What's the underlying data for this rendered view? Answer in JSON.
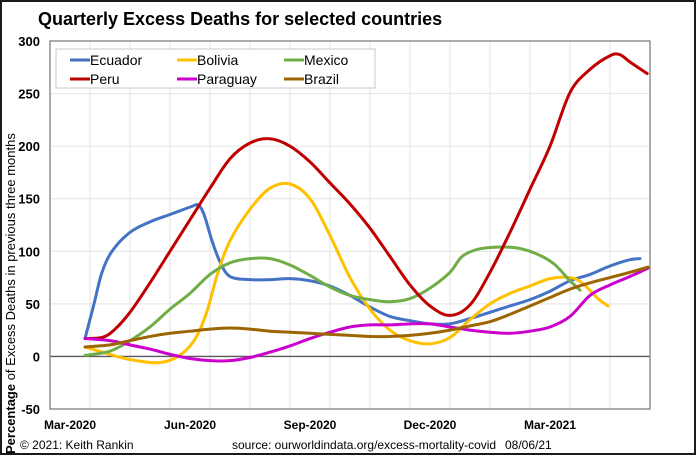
{
  "chart_data": {
    "type": "line",
    "title": "Quarterly Excess Deaths for selected countries",
    "xlabel": "",
    "ylabel": "Percentage of Excess Deaths in previous three months",
    "ylabel_bold_part": "Percentage",
    "ylabel_rest": " of Excess Deaths in previous three months",
    "x_unit": "months since start of Mar-2020",
    "xlim": [
      0,
      15
    ],
    "ylim": [
      -50,
      300
    ],
    "yticks": [
      -50,
      0,
      50,
      100,
      150,
      200,
      250,
      300
    ],
    "xticks": [
      {
        "label": "Mar-2020",
        "x": 0.5
      },
      {
        "label": "Jun-2020",
        "x": 3.5
      },
      {
        "label": "Sep-2020",
        "x": 6.5
      },
      {
        "label": "Dec-2020",
        "x": 9.5
      },
      {
        "label": "Mar-2021",
        "x": 12.5
      }
    ],
    "grid": true,
    "legend_position": "top-left",
    "series": [
      {
        "name": "Ecuador",
        "color": "#4472C4",
        "x": [
          0.875,
          1.1,
          1.3,
          1.55,
          2.0,
          2.5,
          3.0,
          3.5,
          3.7,
          3.85,
          4.05,
          4.25,
          4.5,
          5.0,
          5.5,
          6.0,
          6.5,
          7.0,
          7.5,
          8.0,
          8.5,
          9.0,
          9.5,
          10.0,
          10.5,
          11.0,
          11.5,
          12.0,
          12.5,
          13.0,
          13.5,
          14.0,
          14.5,
          14.75
        ],
        "values": [
          17,
          50,
          80,
          100,
          118,
          128,
          135,
          142,
          144,
          135,
          110,
          90,
          76,
          73,
          73,
          74,
          72,
          67,
          58,
          47,
          38,
          34,
          31,
          31,
          36,
          42,
          48,
          54,
          62,
          72,
          78,
          86,
          92,
          93
        ]
      },
      {
        "name": "Bolivia",
        "color": "#FFC000",
        "x": [
          0.875,
          1.5,
          2.0,
          2.7,
          3.2,
          3.6,
          3.9,
          4.2,
          4.5,
          5.0,
          5.5,
          6.0,
          6.5,
          7.0,
          7.5,
          8.0,
          8.5,
          9.0,
          9.5,
          10.0,
          10.5,
          11.0,
          11.5,
          12.0,
          12.5,
          13.0,
          13.3,
          13.7,
          13.95
        ],
        "values": [
          9,
          2,
          -3,
          -6,
          0,
          15,
          40,
          80,
          110,
          140,
          160,
          164,
          150,
          115,
          75,
          45,
          25,
          15,
          12,
          18,
          35,
          50,
          60,
          67,
          74,
          75,
          70,
          55,
          48
        ]
      },
      {
        "name": "Mexico",
        "color": "#70AD47",
        "x": [
          0.875,
          1.5,
          2.0,
          2.5,
          3.0,
          3.5,
          4.0,
          4.5,
          5.0,
          5.5,
          6.0,
          6.5,
          7.0,
          7.5,
          8.0,
          8.5,
          9.0,
          9.5,
          10.0,
          10.3,
          10.7,
          11.2,
          11.7,
          12.2,
          12.6,
          13.0,
          13.25
        ],
        "values": [
          1,
          5,
          15,
          28,
          45,
          60,
          78,
          89,
          93,
          93,
          87,
          77,
          66,
          58,
          54,
          52,
          55,
          65,
          80,
          95,
          102,
          104,
          103,
          97,
          88,
          72,
          63
        ]
      },
      {
        "name": "Peru",
        "color": "#C00000",
        "x": [
          0.875,
          1.3,
          1.6,
          2.0,
          2.5,
          3.0,
          3.5,
          4.0,
          4.5,
          5.0,
          5.5,
          6.0,
          6.5,
          7.0,
          7.5,
          8.0,
          8.5,
          9.0,
          9.5,
          10.0,
          10.5,
          11.0,
          11.5,
          12.0,
          12.5,
          13.0,
          13.5,
          14.0,
          14.25,
          14.5,
          14.93
        ],
        "values": [
          17,
          18,
          25,
          42,
          70,
          100,
          130,
          160,
          188,
          203,
          207,
          200,
          185,
          165,
          145,
          122,
          95,
          68,
          48,
          39,
          49,
          80,
          118,
          159,
          200,
          251,
          273,
          286,
          287,
          280,
          269
        ]
      },
      {
        "name": "Paraguay",
        "color": "#CC00CC",
        "x": [
          0.875,
          1.5,
          2.0,
          2.5,
          3.0,
          3.5,
          4.0,
          4.5,
          5.0,
          5.5,
          6.0,
          6.5,
          7.0,
          7.5,
          8.0,
          8.5,
          9.0,
          9.5,
          10.0,
          10.5,
          11.0,
          11.5,
          12.0,
          12.5,
          13.0,
          13.5,
          14.0,
          14.5,
          14.95
        ],
        "values": [
          17,
          15,
          11,
          7,
          2,
          -2,
          -4,
          -4,
          -1,
          4,
          10,
          17,
          23,
          28,
          30,
          30,
          31,
          31,
          28,
          25,
          23,
          22,
          24,
          28,
          38,
          58,
          68,
          76,
          84
        ]
      },
      {
        "name": "Brazil",
        "color": "#9C6500",
        "x": [
          0.875,
          1.5,
          2.0,
          2.5,
          3.0,
          3.5,
          4.0,
          4.5,
          5.0,
          5.5,
          6.0,
          6.5,
          7.0,
          7.5,
          8.0,
          8.5,
          9.0,
          9.5,
          10.0,
          10.5,
          11.0,
          11.5,
          12.0,
          12.5,
          13.0,
          13.5,
          14.0,
          14.5,
          14.95
        ],
        "values": [
          9,
          11,
          15,
          19,
          22,
          24,
          26,
          27,
          26,
          24,
          23,
          22,
          21,
          20,
          19,
          19,
          20,
          22,
          25,
          29,
          33,
          40,
          48,
          56,
          64,
          70,
          75,
          80,
          85
        ]
      }
    ]
  },
  "footer": {
    "copyright": "© 2021: Keith Rankin",
    "source": "source: ourworldindata.org/excess-mortality-covid",
    "date": "08/06/21"
  }
}
